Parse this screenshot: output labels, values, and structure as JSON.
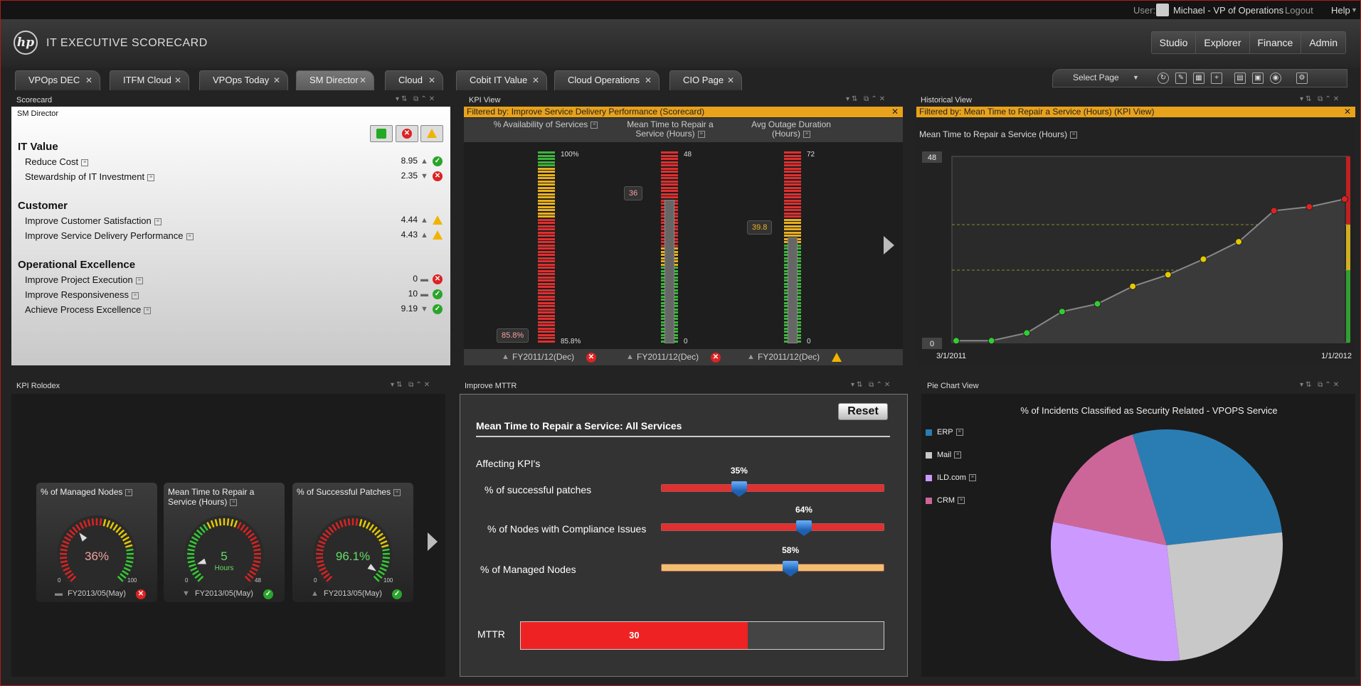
{
  "user_bar": {
    "user_label": "User:",
    "user_name": "Michael - VP of Operations",
    "logout": "Logout",
    "help": "Help"
  },
  "header": {
    "logo": "hp",
    "title": "IT EXECUTIVE SCORECARD",
    "nav": [
      "Studio",
      "Explorer",
      "Finance",
      "Admin"
    ]
  },
  "tabs": [
    {
      "label": "VPOps DEC"
    },
    {
      "label": "ITFM Cloud"
    },
    {
      "label": "VPOps Today"
    },
    {
      "label": "SM Director",
      "active": true
    },
    {
      "label": "Cloud"
    },
    {
      "label": "Cobit IT Value"
    },
    {
      "label": "Cloud Operations"
    },
    {
      "label": "CIO Page"
    }
  ],
  "toolbar": {
    "select_page": "Select Page"
  },
  "scorecard": {
    "title": "Scorecard",
    "subtitle": "SM Director",
    "sections": [
      {
        "name": "IT Value",
        "items": [
          {
            "label": "Reduce Cost",
            "value": "8.95",
            "trend": "up",
            "status": "ok"
          },
          {
            "label": "Stewardship of IT Investment",
            "value": "2.35",
            "trend": "down",
            "status": "bad"
          }
        ]
      },
      {
        "name": "Customer",
        "items": [
          {
            "label": "Improve Customer Satisfaction",
            "value": "4.44",
            "trend": "up",
            "status": "warn"
          },
          {
            "label": "Improve Service Delivery Performance",
            "value": "4.43",
            "trend": "up",
            "status": "warn"
          }
        ]
      },
      {
        "name": "Operational Excellence",
        "items": [
          {
            "label": "Improve Project Execution",
            "value": "0",
            "trend": "flat",
            "status": "bad"
          },
          {
            "label": "Improve Responsiveness",
            "value": "10",
            "trend": "flat",
            "status": "ok"
          },
          {
            "label": "Achieve Process Excellence",
            "value": "9.19",
            "trend": "down",
            "status": "ok"
          }
        ]
      }
    ]
  },
  "kpi_view": {
    "title": "KPI View",
    "filter": "Filtered by: Improve Service Delivery Performance (Scorecard)",
    "kpis": [
      {
        "header": "% Availability of Services",
        "max": "100%",
        "min": "85.8%",
        "value": "85.8%",
        "period": "FY2011/12(Dec)",
        "status": "bad"
      },
      {
        "header": "Mean Time to Repair a Service (Hours)",
        "max": "48",
        "min": "0",
        "value": "36",
        "period": "FY2011/12(Dec)",
        "status": "bad"
      },
      {
        "header": "Avg Outage Duration (Hours)",
        "max": "72",
        "min": "0",
        "value": "39.8",
        "period": "FY2011/12(Dec)",
        "status": "warn"
      }
    ]
  },
  "historical": {
    "title": "Historical View",
    "filter": "Filtered by: Mean Time to Repair a Service (Hours) (KPI View)",
    "chart_title": "Mean Time to Repair a Service (Hours)",
    "chart_data": {
      "type": "line",
      "ylim": [
        0,
        48
      ],
      "x_start": "3/1/2011",
      "x_end": "1/1/2012",
      "values": [
        0.5,
        0.5,
        2.5,
        8,
        10,
        14.5,
        17.5,
        21.5,
        26,
        34,
        35,
        37
      ],
      "status": [
        "ok",
        "ok",
        "ok",
        "ok",
        "ok",
        "warn",
        "warn",
        "warn",
        "warn",
        "bad",
        "bad",
        "bad"
      ]
    }
  },
  "rolodex": {
    "title": "KPI Rolodex",
    "cards": [
      {
        "title": "% of Managed Nodes",
        "value": "36%",
        "unit": "",
        "min": "0",
        "max": "100",
        "period": "FY2013/05(May)",
        "status": "bad",
        "trend": "flat",
        "needle": 0.36
      },
      {
        "title": "Mean Time to Repair a Service (Hours)",
        "value": "5",
        "unit": "Hours",
        "min": "0",
        "max": "48",
        "period": "FY2013/05(May)",
        "status": "ok",
        "trend": "down",
        "needle": 0.1
      },
      {
        "title": "% of Successful Patches",
        "value": "96.1%",
        "unit": "",
        "min": "0",
        "max": "100",
        "period": "FY2013/05(May)",
        "status": "ok",
        "trend": "up",
        "needle": 0.96
      }
    ]
  },
  "mttr": {
    "title": "Improve MTTR",
    "reset": "Reset",
    "heading": "Mean Time to Repair a Service: All Services",
    "affecting": "Affecting KPI's",
    "sliders": [
      {
        "label": "% of successful patches",
        "value": "35%",
        "fraction": 0.35,
        "color": "#e03030"
      },
      {
        "label": "% of Nodes with Compliance Issues",
        "value": "64%",
        "fraction": 0.64,
        "color": "#e03030"
      },
      {
        "label": "% of Managed Nodes",
        "value": "58%",
        "fraction": 0.58,
        "color": "#f0c070"
      }
    ],
    "result_label": "MTTR",
    "result_value": "30",
    "result_fraction": 0.625
  },
  "pie_view": {
    "title": "Pie Chart View",
    "chart_data": {
      "type": "pie",
      "title": "% of Incidents Classified as Security Related - VPOPS Service",
      "labels": [
        "ERP",
        "Mail",
        "ILD.com",
        "CRM"
      ],
      "values": [
        28,
        25,
        30,
        17
      ],
      "colors": [
        "#2a7db3",
        "#c8c8c8",
        "#cc99ff",
        "#cc6699"
      ]
    }
  }
}
